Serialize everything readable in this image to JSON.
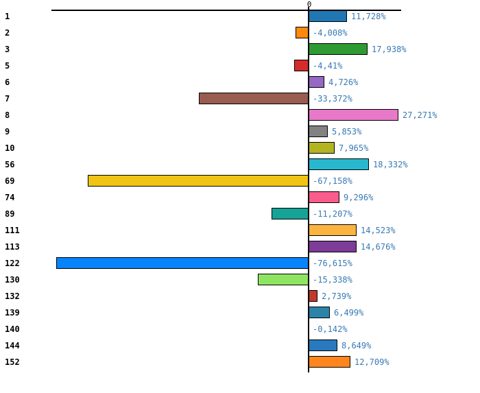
{
  "chart_data": {
    "type": "bar",
    "orientation": "horizontal",
    "title": "",
    "xlabel": "",
    "ylabel": "",
    "zero_tick_label": "0",
    "xlim": [
      -80,
      30
    ],
    "grid": false,
    "legend": "none",
    "categories": [
      "1",
      "2",
      "3",
      "5",
      "6",
      "7",
      "8",
      "9",
      "10",
      "56",
      "69",
      "74",
      "89",
      "111",
      "113",
      "122",
      "130",
      "132",
      "139",
      "140",
      "144",
      "152"
    ],
    "values": [
      11.728,
      -4.008,
      17.938,
      -4.41,
      4.726,
      -33.372,
      27.271,
      5.853,
      7.965,
      18.332,
      -67.158,
      9.296,
      -11.207,
      14.523,
      14.676,
      -76.615,
      -15.338,
      2.739,
      6.499,
      -0.142,
      8.649,
      12.709
    ],
    "value_labels": [
      "11,728%",
      "-4,008%",
      "17,938%",
      "-4,41%",
      "4,726%",
      "-33,372%",
      "27,271%",
      "5,853%",
      "7,965%",
      "18,332%",
      "-67,158%",
      "9,296%",
      "-11,207%",
      "14,523%",
      "14,676%",
      "-76,615%",
      "-15,338%",
      "2,739%",
      "6,499%",
      "-0,142%",
      "8,649%",
      "12,709%"
    ],
    "bar_colors": [
      "#2077B4",
      "#FF8A0D",
      "#2E9B32",
      "#D62B2B",
      "#9468C4",
      "#9A5B50",
      "#E878C8",
      "#828282",
      "#B4B422",
      "#27B8CE",
      "#F0C413",
      "#FA5C8C",
      "#14A396",
      "#FBB440",
      "#7D3C98",
      "#0884FA",
      "#8EE562",
      "#C0392B",
      "#2B84A8",
      "#808080",
      "#2979BE",
      "#FF861E"
    ],
    "value_label_color": "#3779B4",
    "category_label_color": "#000000",
    "axis_color": "#000000"
  }
}
